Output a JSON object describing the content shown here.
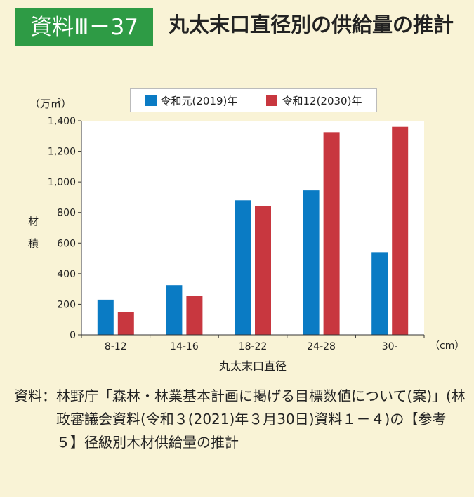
{
  "header": {
    "badge": "資料Ⅲ－37",
    "title": "丸太末口直径別の供給量の推計"
  },
  "chart_data": {
    "type": "bar",
    "unit_label": "（万㎥）",
    "ylabel": "材積",
    "xlabel": "丸太末口直径",
    "x_unit_label": "（cm）",
    "categories": [
      "8-12",
      "14-16",
      "18-22",
      "24-28",
      "30-"
    ],
    "ylim": [
      0,
      1400
    ],
    "yticks": [
      0,
      200,
      400,
      600,
      800,
      1000,
      1200,
      1400
    ],
    "ytick_labels": [
      "0",
      "200",
      "400",
      "600",
      "800",
      "1,000",
      "1,200",
      "1,400"
    ],
    "legend_position": "top",
    "series": [
      {
        "name": "令和元(2019)年",
        "color": "#0a7bc4",
        "values": [
          230,
          325,
          880,
          945,
          540
        ]
      },
      {
        "name": "令和12(2030)年",
        "color": "#c8373f",
        "values": [
          150,
          255,
          840,
          1325,
          1360
        ]
      }
    ]
  },
  "source": {
    "label": "資料：",
    "text": "林野庁「森林・林業基本計画に掲げる目標数値について(案)」(林政審議会資料(令和３(2021)年３月30日)資料１－４)の【参考５】径級別木材供給量の推計"
  }
}
